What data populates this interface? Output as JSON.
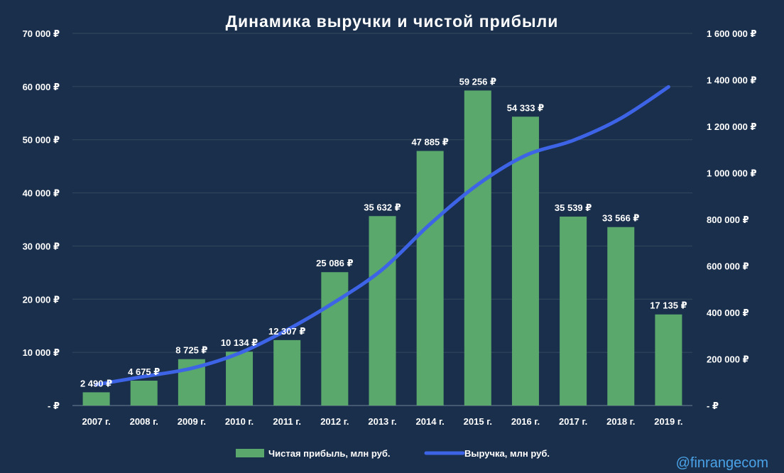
{
  "chart_data": {
    "type": "bar",
    "title": "Динамика выручки и чистой прибыли",
    "categories": [
      "2007 г.",
      "2008 г.",
      "2009 г.",
      "2010 г.",
      "2011 г.",
      "2012 г.",
      "2013 г.",
      "2014 г.",
      "2015 г.",
      "2016 г.",
      "2017 г.",
      "2018 г.",
      "2019 г."
    ],
    "series": [
      {
        "name": "Чистая прибыль, млн руб.",
        "type": "bar",
        "axis": "left",
        "color": "#5aa86c",
        "values": [
          2490,
          4675,
          8725,
          10134,
          12307,
          25086,
          35632,
          47885,
          59256,
          54333,
          35539,
          33566,
          17135
        ],
        "data_labels": [
          "2 490 ₽",
          "4 675 ₽",
          "8 725 ₽",
          "10 134 ₽",
          "12 307 ₽",
          "25 086 ₽",
          "35 632 ₽",
          "47 885 ₽",
          "59 256 ₽",
          "54 333 ₽",
          "35 539 ₽",
          "33 566 ₽",
          "17 135 ₽"
        ]
      },
      {
        "name": "Выручка, млн руб.",
        "type": "line",
        "axis": "right",
        "color": "#3d63e6",
        "values": [
          90000,
          125000,
          160000,
          225000,
          325000,
          445000,
          585000,
          780000,
          950000,
          1075000,
          1140000,
          1235000,
          1370000
        ]
      }
    ],
    "y_left": {
      "range": [
        0,
        70000
      ],
      "ticks": [
        0,
        10000,
        20000,
        30000,
        40000,
        50000,
        60000,
        70000
      ],
      "tick_labels": [
        "-   ₽",
        "10 000 ₽",
        "20 000 ₽",
        "30 000 ₽",
        "40 000 ₽",
        "50 000 ₽",
        "60 000 ₽",
        "70 000 ₽"
      ]
    },
    "y_right": {
      "range": [
        0,
        1600000
      ],
      "ticks": [
        0,
        200000,
        400000,
        600000,
        800000,
        1000000,
        1200000,
        1400000,
        1600000
      ],
      "tick_labels": [
        "-   ₽",
        "200 000 ₽",
        "400 000 ₽",
        "600 000 ₽",
        "800 000 ₽",
        "1 000 000 ₽",
        "1 200 000 ₽",
        "1 400 000 ₽",
        "1 600 000 ₽"
      ]
    },
    "grid": true,
    "legend_position": "bottom",
    "background": "#1a2f4b"
  },
  "watermark": "@finrangecom"
}
